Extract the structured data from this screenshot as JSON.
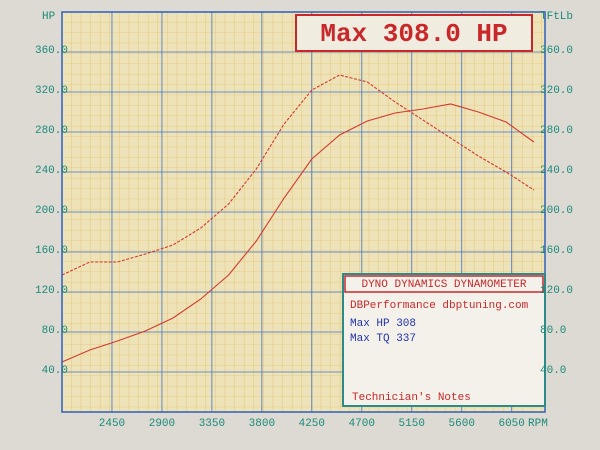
{
  "chart_data": {
    "type": "line",
    "title": "Max 308.0 HP",
    "ylabel": "HP",
    "y2label": "lFtLb",
    "xlabel": "RPM",
    "x": [
      2000,
      2250,
      2500,
      2750,
      3000,
      3250,
      3500,
      3750,
      4000,
      4250,
      4500,
      4750,
      5000,
      5250,
      5500,
      5750,
      6000,
      6250
    ],
    "series": [
      {
        "color": "#d23a2c",
        "values": [
          50,
          62,
          71,
          81,
          94,
          113,
          137,
          171,
          214,
          253,
          277,
          291,
          299,
          303,
          308,
          300,
          290,
          270
        ]
      },
      {
        "color": "#d23a2c",
        "axis": "y2",
        "values": [
          137,
          150,
          150,
          158,
          167,
          184,
          208,
          243,
          288,
          322,
          337,
          330,
          310,
          292,
          274,
          256,
          240,
          222
        ]
      }
    ],
    "xlim": [
      2000,
      6350
    ],
    "xticks": [
      2450,
      2900,
      3350,
      3800,
      4250,
      4700,
      5150,
      5600,
      6050
    ],
    "ylim": [
      0,
      400
    ],
    "yticks": [
      {
        "value": 40,
        "label": "40.0"
      },
      {
        "value": 80,
        "label": "80.0"
      },
      {
        "value": 120,
        "label": "120.0"
      },
      {
        "value": 160,
        "label": "160.0"
      },
      {
        "value": 200,
        "label": "200.0"
      },
      {
        "value": 240,
        "label": "240.0"
      },
      {
        "value": 280,
        "label": "280.0"
      },
      {
        "value": 320,
        "label": "320.0"
      },
      {
        "value": 360,
        "label": "360.0"
      }
    ],
    "y2lim": [
      0,
      400
    ],
    "y2ticks": [
      {
        "value": 40,
        "label": "40.0"
      },
      {
        "value": 80,
        "label": "80.0"
      },
      {
        "value": 120,
        "label": "120.0"
      },
      {
        "value": 160,
        "label": "160.0"
      },
      {
        "value": 200,
        "label": "200.0"
      },
      {
        "value": 240,
        "label": "240.0"
      },
      {
        "value": 280,
        "label": "280.0"
      },
      {
        "value": 320,
        "label": "320.0"
      },
      {
        "value": 360,
        "label": "360.0"
      }
    ],
    "grid": true,
    "info_box": {
      "title": "DYNO DYNAMICS DYNAMOMETER",
      "lines": [
        "DBPerformance dbptuning.com",
        "Max HP 308",
        "Max TQ 337"
      ],
      "footer": "Technician's Notes"
    }
  }
}
